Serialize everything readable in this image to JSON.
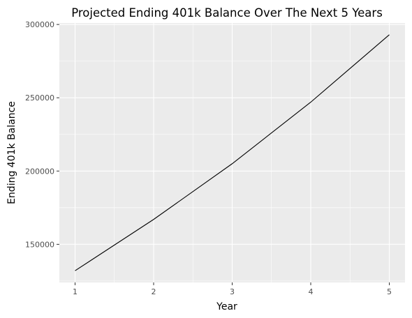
{
  "chart_data": {
    "type": "line",
    "title": "Projected Ending 401k Balance Over The Next 5 Years",
    "xlabel": "Year",
    "ylabel": "Ending 401k Balance",
    "x": [
      1,
      2,
      3,
      4,
      5
    ],
    "series": [
      {
        "values": [
          132000,
          167000,
          205000,
          247000,
          293000
        ]
      }
    ],
    "xticks": [
      1,
      2,
      3,
      4,
      5
    ],
    "yticks": [
      150000,
      200000,
      250000,
      300000
    ],
    "xlim": [
      0.8,
      5.2
    ],
    "ylim": [
      124000,
      301000
    ],
    "grid": true,
    "colors": {
      "panel": "#ebebeb",
      "grid": "#ffffff",
      "line": "#000000"
    }
  }
}
